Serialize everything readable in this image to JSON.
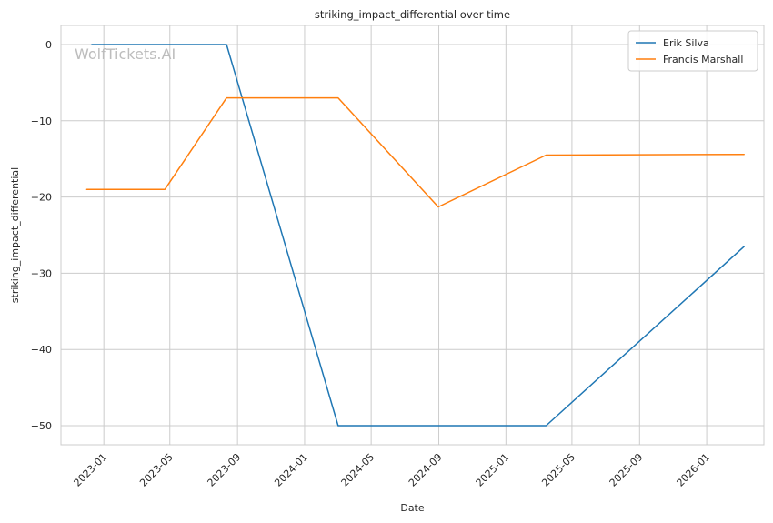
{
  "chart_data": {
    "type": "line",
    "title": "striking_impact_differential over time",
    "xlabel": "Date",
    "ylabel": "striking_impact_differential",
    "watermark": "WolfTickets.AI",
    "x_ticks": [
      "2023-01",
      "2023-05",
      "2023-09",
      "2024-01",
      "2024-05",
      "2024-09",
      "2025-01",
      "2025-05",
      "2025-09",
      "2026-01"
    ],
    "y_ticks": [
      "0",
      "−10",
      "−20",
      "−30",
      "−40",
      "−50"
    ],
    "ylim": [
      -52.5,
      2.5
    ],
    "xlim": [
      "2022-10-15",
      "2026-04-15"
    ],
    "grid": true,
    "legend_position": "top-right",
    "series": [
      {
        "name": "Erik Silva",
        "color": "#1f77b4",
        "points": [
          {
            "x": "2022-12-10",
            "y": 0
          },
          {
            "x": "2023-08-12",
            "y": 0
          },
          {
            "x": "2024-03-02",
            "y": -50
          },
          {
            "x": "2025-03-15",
            "y": -50
          },
          {
            "x": "2026-03-10",
            "y": -26.5
          }
        ]
      },
      {
        "name": "Francis Marshall",
        "color": "#ff7f0e",
        "points": [
          {
            "x": "2022-12-01",
            "y": -19
          },
          {
            "x": "2023-04-22",
            "y": -19
          },
          {
            "x": "2023-08-12",
            "y": -7
          },
          {
            "x": "2024-03-02",
            "y": -7
          },
          {
            "x": "2024-08-31",
            "y": -21.3
          },
          {
            "x": "2025-03-15",
            "y": -14.5
          },
          {
            "x": "2026-03-10",
            "y": -14.4
          }
        ]
      }
    ]
  }
}
